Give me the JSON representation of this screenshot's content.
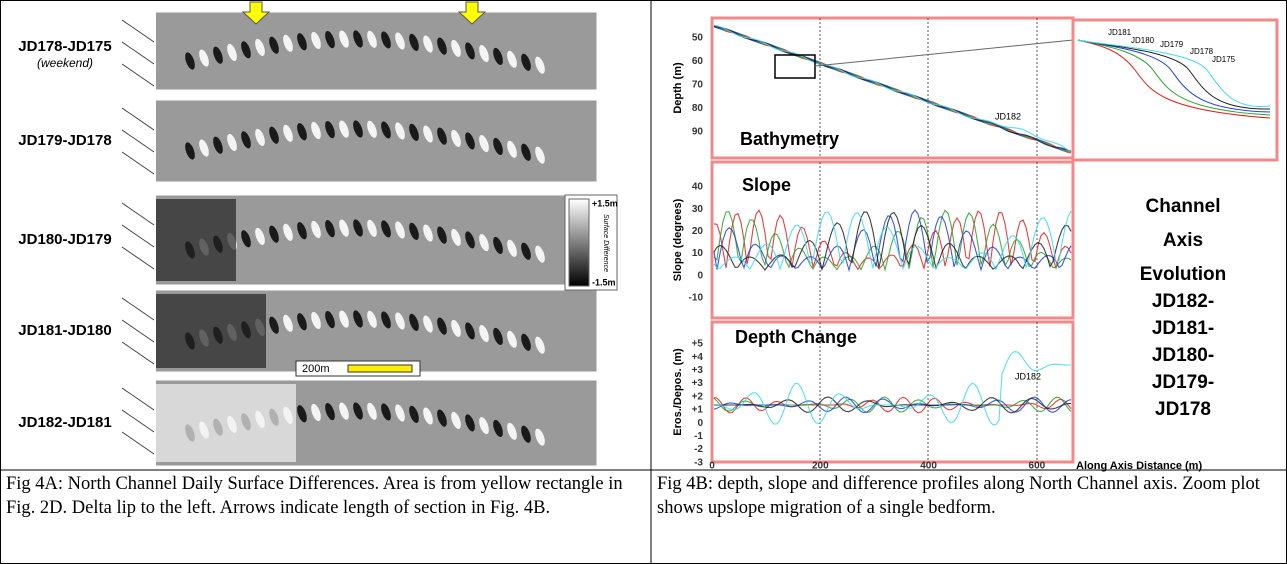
{
  "left_panel": {
    "rows": [
      {
        "label": "JD178-JD175",
        "note": "(weekend)"
      },
      {
        "label": "JD179-JD178"
      },
      {
        "label": "JD180-JD179"
      },
      {
        "label": "JD181-JD180"
      },
      {
        "label": "JD182-JD181"
      }
    ],
    "colorbar": {
      "max": "+1.5m",
      "min": "-1.5m",
      "title": "Surface Difference"
    },
    "scale_bar": "200m"
  },
  "right_panel": {
    "plots": [
      {
        "title": "Bathymetry",
        "y_label": "Depth (m)",
        "yticks": [
          50,
          60,
          70,
          80,
          90
        ],
        "annotation": "JD182"
      },
      {
        "title": "Slope",
        "y_label": "Slope (degrees)",
        "yticks": [
          40,
          30,
          20,
          10,
          0,
          -10
        ]
      },
      {
        "title": "Depth Change",
        "y_label": "Eros./Depos. (m)",
        "yticks": [
          "+5",
          "+4",
          "+3",
          "+3",
          "+2",
          "+1",
          0,
          -1,
          -2,
          -3
        ],
        "annotation": "JD182"
      }
    ],
    "xticks": [
      0,
      200,
      400,
      600
    ],
    "x_label": "Along Axis Distance (m)",
    "inset_labels": [
      "JD181",
      "JD180",
      "JD179",
      "JD178",
      "JD175"
    ],
    "side_title": [
      "Channel",
      "Axis",
      "Evolution"
    ],
    "side_list": [
      "JD182-",
      "JD181-",
      "JD180-",
      "JD179-",
      "JD178"
    ]
  },
  "captions": [
    "Fig 4A: North Channel Daily Surface Differences. Area is from yellow rectangle in Fig. 2D.  Delta lip to the left. Arrows indicate length of section in Fig. 4B.",
    "Fig 4B: depth, slope and difference profiles along North Channel axis. Zoom plot shows upslope migration of a single bedform."
  ]
}
